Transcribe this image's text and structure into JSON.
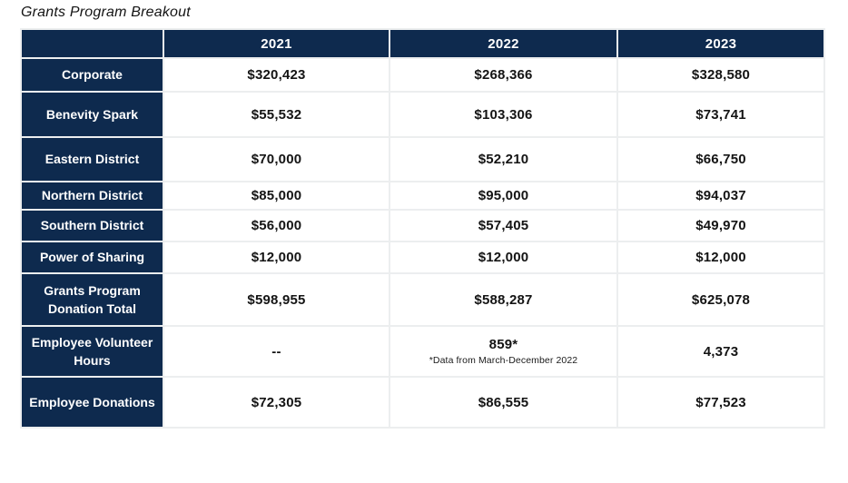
{
  "title": "Grants Program Breakout",
  "colors": {
    "header_navy": "#0E2A4E",
    "grid_line": "#ECEEEF",
    "value_text": "#141414",
    "header_text": "#FFFFFF"
  },
  "table": {
    "columns": [
      "2021",
      "2022",
      "2023"
    ],
    "rows": [
      {
        "label": "Corporate",
        "values": [
          "$320,423",
          "$268,366",
          "$328,580"
        ]
      },
      {
        "label": "Benevity Spark",
        "values": [
          "$55,532",
          "$103,306",
          "$73,741"
        ]
      },
      {
        "label": "Eastern District",
        "values": [
          "$70,000",
          "$52,210",
          "$66,750"
        ]
      },
      {
        "label": "Northern District",
        "values": [
          "$85,000",
          "$95,000",
          "$94,037"
        ]
      },
      {
        "label": "Southern District",
        "values": [
          "$56,000",
          "$57,405",
          "$49,970"
        ]
      },
      {
        "label": "Power of Sharing",
        "values": [
          "$12,000",
          "$12,000",
          "$12,000"
        ]
      },
      {
        "label": "Grants Program Donation Total",
        "values": [
          "$598,955",
          "$588,287",
          "$625,078"
        ]
      },
      {
        "label": "Employee Volunteer Hours",
        "values": [
          "--",
          "859*",
          "4,373"
        ],
        "note": "*Data from March-December 2022"
      },
      {
        "label": "Employee Donations",
        "values": [
          "$72,305",
          "$86,555",
          "$77,523"
        ]
      }
    ]
  },
  "chart_data": {
    "type": "table",
    "title": "Grants Program Breakout",
    "categories": [
      "2021",
      "2022",
      "2023"
    ],
    "series": [
      {
        "name": "Corporate",
        "values": [
          320423,
          268366,
          328580
        ]
      },
      {
        "name": "Benevity Spark",
        "values": [
          55532,
          103306,
          73741
        ]
      },
      {
        "name": "Eastern District",
        "values": [
          70000,
          52210,
          66750
        ]
      },
      {
        "name": "Northern District",
        "values": [
          85000,
          95000,
          94037
        ]
      },
      {
        "name": "Southern District",
        "values": [
          56000,
          57405,
          49970
        ]
      },
      {
        "name": "Power of Sharing",
        "values": [
          12000,
          12000,
          12000
        ]
      },
      {
        "name": "Grants Program Donation Total",
        "values": [
          598955,
          588287,
          625078
        ]
      },
      {
        "name": "Employee Volunteer Hours",
        "values": [
          null,
          859,
          4373
        ]
      },
      {
        "name": "Employee Donations",
        "values": [
          72305,
          86555,
          77523
        ]
      }
    ],
    "annotations": [
      "*Data from March-December 2022"
    ],
    "notes": "Dollar values for all rows except Employee Volunteer Hours (hours). 2021 volunteer hours not reported (--). 859 hours marked with asterisk: data from March-December 2022 only."
  }
}
